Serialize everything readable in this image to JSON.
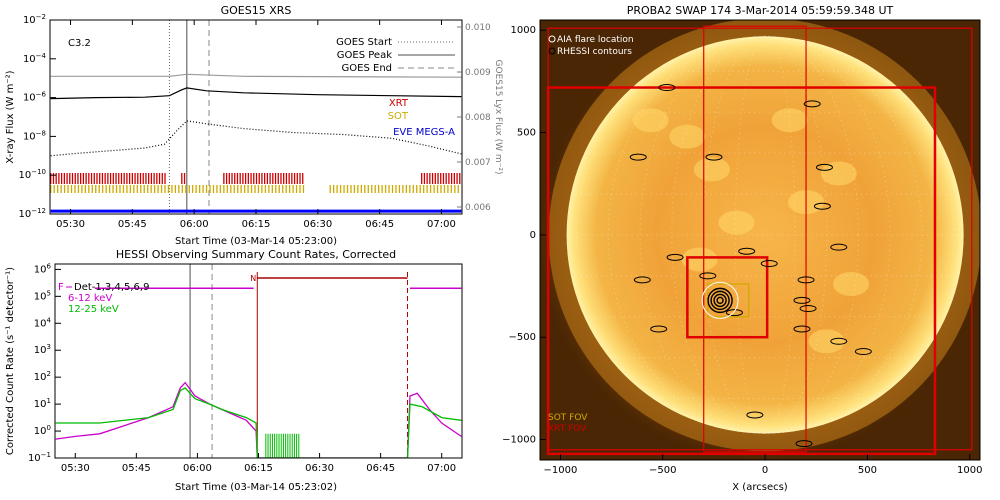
{
  "chart_data": [
    {
      "type": "line",
      "title": "GOES15 XRS",
      "flare_class": "C3.2",
      "xlabel": "Start Time (03-Mar-14 05:23:00)",
      "ylabel": "X-ray Flux (W m⁻²)",
      "y2label": "GOES15 Lyx Flux (W m⁻²)",
      "xlim": [
        5.417,
        7.083
      ],
      "x_ticks": [
        "05:30",
        "05:45",
        "06:00",
        "06:15",
        "06:30",
        "06:45",
        "07:00"
      ],
      "y_ticks_exp": [
        -12,
        -10,
        -8,
        -6,
        -4,
        -2
      ],
      "y2_ticks": [
        "0.006",
        "0.007",
        "0.008",
        "0.009",
        "0.010"
      ],
      "vlines": [
        {
          "name": "GOES Start",
          "x": 5.9,
          "style": "dotted"
        },
        {
          "name": "GOES Peak",
          "x": 5.97,
          "style": "solid"
        },
        {
          "name": "GOES End",
          "x": 6.06,
          "style": "dashed"
        }
      ],
      "series": [
        {
          "name": "long",
          "color": "#000000",
          "x": [
            5.42,
            5.6,
            5.8,
            5.9,
            5.95,
            5.97,
            6.05,
            6.2,
            6.5,
            6.8,
            7.08
          ],
          "y": [
            -6.05,
            -6.0,
            -5.98,
            -5.9,
            -5.6,
            -5.5,
            -5.65,
            -5.75,
            -5.85,
            -5.9,
            -5.95
          ]
        },
        {
          "name": "short",
          "color": "#000000",
          "style": "dotted",
          "x": [
            5.42,
            5.5,
            5.6,
            5.7,
            5.8,
            5.88,
            5.93,
            5.97,
            6.05,
            6.2,
            6.4,
            6.6,
            6.8,
            6.95,
            7.08
          ],
          "y": [
            -9.0,
            -8.9,
            -8.8,
            -8.7,
            -8.6,
            -8.4,
            -7.7,
            -7.2,
            -7.35,
            -7.6,
            -7.8,
            -7.9,
            -8.1,
            -8.5,
            -8.9
          ]
        },
        {
          "name": "lyman",
          "color": "#999999",
          "x": [
            5.42,
            5.9,
            5.97,
            6.2,
            7.08
          ],
          "y": [
            -4.9,
            -4.9,
            -4.8,
            -4.9,
            -4.95
          ]
        },
        {
          "name": "EVE MEGS-A",
          "color": "#0000ff",
          "x": [
            5.42,
            7.08
          ],
          "y": [
            -11.85,
            -11.85
          ]
        }
      ],
      "legend": [
        "GOES Start",
        "GOES Peak",
        "GOES End"
      ],
      "coverage_labels": [
        {
          "name": "XRT",
          "color": "#cc0000"
        },
        {
          "name": "SOT",
          "color": "#ccaa00"
        },
        {
          "name": "EVE MEGS-A",
          "color": "#0000cc"
        }
      ],
      "xrt_segments": [
        [
          5.42,
          5.89
        ],
        [
          5.95,
          5.97
        ],
        [
          6.12,
          6.45
        ],
        [
          6.92,
          7.08
        ]
      ],
      "sot_segments": [
        [
          5.42,
          6.45
        ],
        [
          6.55,
          7.08
        ]
      ]
    },
    {
      "type": "line",
      "title": "HESSI Observing Summary Count Rates, Corrected",
      "xlabel": "Start Time (03-Mar-14 05:23:02)",
      "ylabel": "Corrected Count Rate (s⁻¹ detector⁻¹)",
      "xlim": [
        5.417,
        7.083
      ],
      "x_ticks": [
        "05:30",
        "05:45",
        "06:00",
        "06:15",
        "06:30",
        "06:45",
        "07:00"
      ],
      "y_ticks_exp": [
        -1,
        0,
        1,
        2,
        3,
        4,
        5,
        6
      ],
      "legend_prefix": "F",
      "legend": [
        "Det-1,3,4,5,6,9",
        "6-12 keV",
        "12-25 keV"
      ],
      "legend_colors": [
        "#000000",
        "#cc00cc",
        "#00bb00"
      ],
      "night_label": "N",
      "night": [
        6.245,
        6.86
      ],
      "vlines": [
        5.97,
        6.06
      ],
      "series": [
        {
          "name": "6-12 keV",
          "color": "#cc00cc",
          "x": [
            5.42,
            5.5,
            5.6,
            5.7,
            5.8,
            5.9,
            5.93,
            5.95,
            5.99,
            6.05,
            6.1,
            6.2,
            6.24,
            6.245,
            6.86,
            6.87,
            6.9,
            6.95,
            7.0,
            7.08
          ],
          "y": [
            -0.3,
            -0.2,
            -0.1,
            0.2,
            0.5,
            0.9,
            1.6,
            1.8,
            1.3,
            1.0,
            0.8,
            0.4,
            0.0,
            -1.0,
            -1.0,
            1.3,
            1.4,
            0.8,
            0.3,
            -0.2
          ]
        },
        {
          "name": "12-25 keV",
          "color": "#00bb00",
          "x": [
            5.42,
            5.6,
            5.8,
            5.9,
            5.93,
            5.95,
            5.99,
            6.05,
            6.1,
            6.2,
            6.24,
            6.245,
            6.86,
            6.87,
            6.92,
            7.0,
            7.08
          ],
          "y": [
            0.3,
            0.3,
            0.5,
            0.8,
            1.5,
            1.6,
            1.2,
            1.0,
            0.8,
            0.5,
            0.3,
            -1.0,
            -1.0,
            1.0,
            0.9,
            0.5,
            0.4
          ]
        }
      ],
      "attenuator_level": 5.3,
      "attenuator_segments": [
        [
          5.58,
          6.23
        ],
        [
          6.87,
          7.08
        ]
      ]
    },
    {
      "type": "image",
      "title": "PROBA2 SWAP 174  3-Mar-2014 05:59:59.348 UT",
      "xlabel": "X (arcsecs)",
      "xlim": [
        -1100,
        1050
      ],
      "ylim": [
        -1100,
        1050
      ],
      "x_ticks": [
        -1000,
        -500,
        0,
        500,
        1000
      ],
      "y_ticks": [
        -1000,
        -500,
        0,
        500,
        1000
      ],
      "legend": [
        "AIA flare location",
        "RHESSI contours"
      ],
      "fov_labels": [
        {
          "name": "SOT FOV",
          "color": "#ccaa00"
        },
        {
          "name": "XRT FOV",
          "color": "#cc0000"
        }
      ],
      "flare": [
        -220,
        -320
      ],
      "solar_radius": 970,
      "fov_boxes": [
        {
          "name": "xrt-large",
          "x": [
            -1060,
            1010
          ],
          "y": [
            -1050,
            1010
          ]
        },
        {
          "name": "xrt-medium",
          "x": [
            -1060,
            830
          ],
          "y": [
            -1070,
            720
          ]
        },
        {
          "name": "xrt-narrow",
          "x": [
            -300,
            200
          ],
          "y": [
            -1060,
            1020
          ]
        },
        {
          "name": "xrt-small",
          "x": [
            -380,
            10
          ],
          "y": [
            -500,
            -110
          ]
        },
        {
          "name": "sot",
          "x": [
            -280,
            -80
          ],
          "y": [
            -400,
            -240
          ]
        }
      ]
    }
  ]
}
